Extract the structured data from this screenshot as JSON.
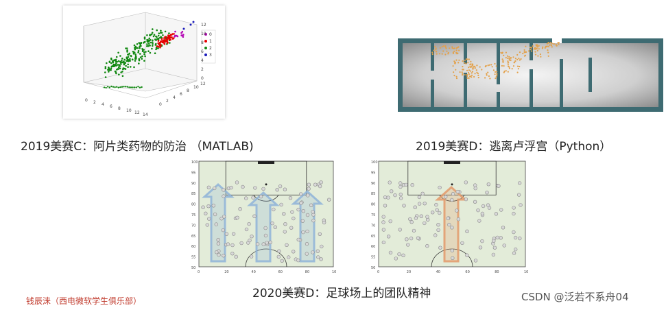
{
  "captions": {
    "first": "2019美赛C：阿片类药物的防治 （MATLAB)",
    "second": "2019美赛D：逃离卢浮宫（Python）",
    "third": "2020美赛D：足球场上的团队精神"
  },
  "footer": {
    "left": "钱辰涞（西电微软学生俱乐部）",
    "right": "CSDN @泛若不系舟04"
  },
  "scatter_plot": {
    "legend": [
      "0",
      "1",
      "2",
      "3"
    ],
    "colors": [
      "#b300b3",
      "#e60000",
      "#118811",
      "#1b1bbb"
    ],
    "x_ticks": [
      "0",
      "2",
      "4",
      "6",
      "8",
      "10",
      "12",
      "14"
    ],
    "y_ticks": [
      "0",
      "2",
      "4",
      "6",
      "8",
      "10",
      "12"
    ],
    "z_ticks": [
      "0",
      "2",
      "4",
      "6",
      "8",
      "10",
      "12"
    ]
  },
  "field_plots": [
    {
      "x_ticks": [
        "0",
        "20",
        "40",
        "60",
        "80",
        "100"
      ],
      "y_ticks": [
        "100",
        "95",
        "90",
        "85",
        "80",
        "75",
        "70",
        "65",
        "60",
        "55",
        "50"
      ],
      "arrow_color": "#8fb4d8"
    },
    {
      "x_ticks": [
        "0",
        "20",
        "40",
        "60",
        "80",
        "100"
      ],
      "y_ticks": [
        "100",
        "95",
        "90",
        "85",
        "80",
        "75",
        "70",
        "65",
        "60",
        "55",
        "50"
      ],
      "arrow_color": "#e39a6a"
    }
  ]
}
